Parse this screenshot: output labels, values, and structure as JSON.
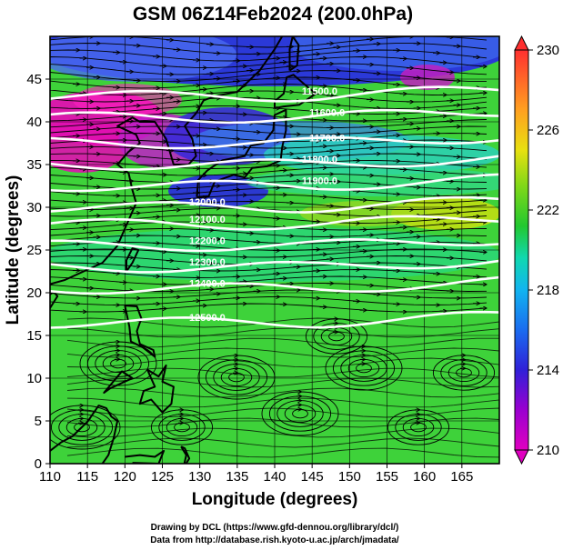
{
  "title": "GSM 06Z14Feb2024 (200.0hPa)",
  "xlabel": "Longitude (degrees)",
  "ylabel": "Latitude  (degrees)",
  "credits": [
    "Drawing by DCL (https://www.gfd-dennou.org/library/dcl/)",
    "Data from http://database.rish.kyoto-u.ac.jp/arch/jmadata/"
  ],
  "map": {
    "lon_range": [
      110,
      170
    ],
    "lat_range": [
      0,
      50
    ],
    "x_ticks": [
      "110",
      "115",
      "120",
      "125",
      "130",
      "135",
      "140",
      "145",
      "150",
      "155",
      "160",
      "165"
    ],
    "y_ticks": [
      "0",
      "5",
      "10",
      "15",
      "20",
      "25",
      "30",
      "35",
      "40",
      "45"
    ],
    "grid": true
  },
  "colorbar": {
    "range": [
      210,
      230
    ],
    "ticks": [
      "210",
      "214",
      "218",
      "222",
      "226",
      "230"
    ],
    "colors": [
      "#e000c0",
      "#8800cc",
      "#2020d8",
      "#1a8cff",
      "#10d8d8",
      "#22c830",
      "#8edc10",
      "#e8e010",
      "#ff9020",
      "#ff3030"
    ]
  },
  "contour_labels": [
    "11500.0",
    "11600.0",
    "11700.0",
    "11800.0",
    "11900.0",
    "12000.0",
    "12100.0",
    "12200.0",
    "12300.0",
    "12400.0",
    "12500.0"
  ],
  "contour_latitudes": [
    43.0,
    40.5,
    37.5,
    35.0,
    32.5,
    30.0,
    28.0,
    25.5,
    23.0,
    20.5,
    16.5
  ]
}
